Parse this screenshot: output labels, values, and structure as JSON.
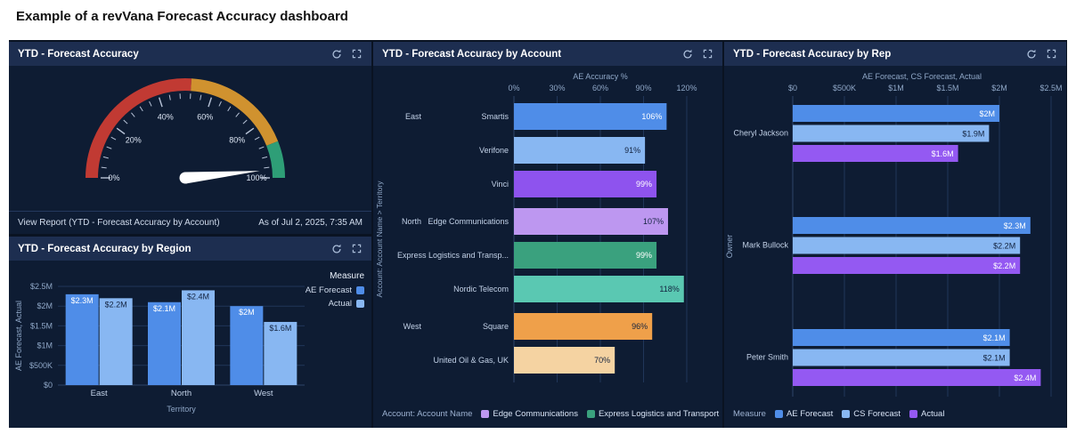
{
  "page_title": "Example of a revVana Forecast Accuracy dashboard",
  "panels": {
    "gauge": {
      "title": "YTD - Forecast Accuracy",
      "footer_link": "View Report (YTD - Forecast Accuracy by Account)",
      "as_of": "As of Jul 2, 2025, 7:35 AM"
    },
    "region": {
      "title": "YTD - Forecast Accuracy by Region"
    },
    "account": {
      "title": "YTD - Forecast Accuracy by Account"
    },
    "rep": {
      "title": "YTD - Forecast Accuracy by Rep"
    }
  },
  "chart_data": [
    {
      "id": "gauge",
      "type": "gauge",
      "title": "YTD - Forecast Accuracy",
      "min": 0,
      "max": 100,
      "value": 97,
      "unit": "%",
      "tick_labels": [
        "0%",
        "20%",
        "40%",
        "60%",
        "80%",
        "100%"
      ],
      "segments": [
        {
          "from": 0,
          "to": 52,
          "color": "#c13a33"
        },
        {
          "from": 52,
          "to": 88,
          "color": "#d0922f"
        },
        {
          "from": 88,
          "to": 100,
          "color": "#2e9e77"
        }
      ]
    },
    {
      "id": "region",
      "type": "bar",
      "title": "YTD - Forecast Accuracy by Region",
      "categories": [
        "East",
        "North",
        "West"
      ],
      "series": [
        {
          "name": "AE Forecast",
          "color": "#4f8de8",
          "label_dark": false,
          "values": [
            2300000,
            2100000,
            2000000
          ],
          "labels": [
            "$2.3M",
            "$2.1M",
            "$2M"
          ]
        },
        {
          "name": "Actual",
          "color": "#88b7f2",
          "label_dark": true,
          "values": [
            2200000,
            2400000,
            1600000
          ],
          "labels": [
            "$2.2M",
            "$2.4M",
            "$1.6M"
          ]
        }
      ],
      "xlabel": "Territory",
      "ylabel": "AE Forecast, Actual",
      "ylim": [
        0,
        2500000
      ],
      "ytick_labels": [
        "$0",
        "$500K",
        "$1M",
        "$1.5M",
        "$2M",
        "$2.5M"
      ],
      "legend_title": "Measure",
      "legend_position": "top-right",
      "grid": true
    },
    {
      "id": "account",
      "type": "hbar",
      "title": "YTD - Forecast Accuracy by Account",
      "axis_title": "AE Accuracy %",
      "category_axis_label": "Account: Account Name > Territory",
      "xlim": [
        0,
        120
      ],
      "xtick_labels": [
        "0%",
        "30%",
        "60%",
        "90%",
        "120%"
      ],
      "grid": true,
      "groups": [
        {
          "name": "East",
          "rows": [
            {
              "account": "Smartis",
              "value": 106,
              "label": "106%",
              "color": "#4f8de8",
              "label_dark": false
            },
            {
              "account": "Verifone",
              "value": 91,
              "label": "91%",
              "color": "#88b7f2",
              "label_dark": true
            },
            {
              "account": "Vinci",
              "value": 99,
              "label": "99%",
              "color": "#8e53ee",
              "label_dark": false
            }
          ]
        },
        {
          "name": "North",
          "rows": [
            {
              "account": "Edge Communications",
              "value": 107,
              "label": "107%",
              "color": "#bd97f0",
              "label_dark": true
            },
            {
              "account": "Express Logistics and Transp...",
              "value": 99,
              "label": "99%",
              "color": "#3aa17e",
              "label_dark": false
            },
            {
              "account": "Nordic Telecom",
              "value": 118,
              "label": "118%",
              "color": "#5ac8b2",
              "label_dark": true
            }
          ]
        },
        {
          "name": "West",
          "rows": [
            {
              "account": "Square",
              "value": 96,
              "label": "96%",
              "color": "#efa04a",
              "label_dark": true
            },
            {
              "account": "United Oil & Gas, UK",
              "value": 70,
              "label": "70%",
              "color": "#f5d3a2",
              "label_dark": true
            }
          ]
        }
      ],
      "legend_title": "Account: Account Name",
      "legend_items": [
        {
          "label": "Edge Communications",
          "color": "#bd97f0"
        },
        {
          "label": "Express Logistics and Transport",
          "color": "#3aa17e"
        },
        {
          "label": "Nordic Telecom",
          "color": "#5ac8b2"
        }
      ],
      "legend_position": "bottom"
    },
    {
      "id": "rep",
      "type": "hbar",
      "title": "YTD - Forecast Accuracy by Rep",
      "axis_title": "AE Forecast, CS Forecast, Actual",
      "category_axis_label": "Owner",
      "xlim": [
        0,
        2500000
      ],
      "xtick_labels": [
        "$0",
        "$500K",
        "$1M",
        "$1.5M",
        "$2M",
        "$2.5M"
      ],
      "grid": true,
      "series": [
        {
          "name": "AE Forecast",
          "color": "#4f8de8",
          "label_dark": false
        },
        {
          "name": "CS Forecast",
          "color": "#88b7f2",
          "label_dark": true
        },
        {
          "name": "Actual",
          "color": "#9459f2",
          "label_dark": false
        }
      ],
      "groups": [
        {
          "name": "Cheryl Jackson",
          "values": [
            2000000,
            1900000,
            1600000
          ],
          "labels": [
            "$2M",
            "$1.9M",
            "$1.6M"
          ]
        },
        {
          "name": "Mark Bullock",
          "values": [
            2300000,
            2200000,
            2200000
          ],
          "labels": [
            "$2.3M",
            "$2.2M",
            "$2.2M"
          ]
        },
        {
          "name": "Peter Smith",
          "values": [
            2100000,
            2100000,
            2400000
          ],
          "labels": [
            "$2.1M",
            "$2.1M",
            "$2.4M"
          ]
        }
      ],
      "legend_title": "Measure",
      "legend_position": "bottom"
    }
  ]
}
